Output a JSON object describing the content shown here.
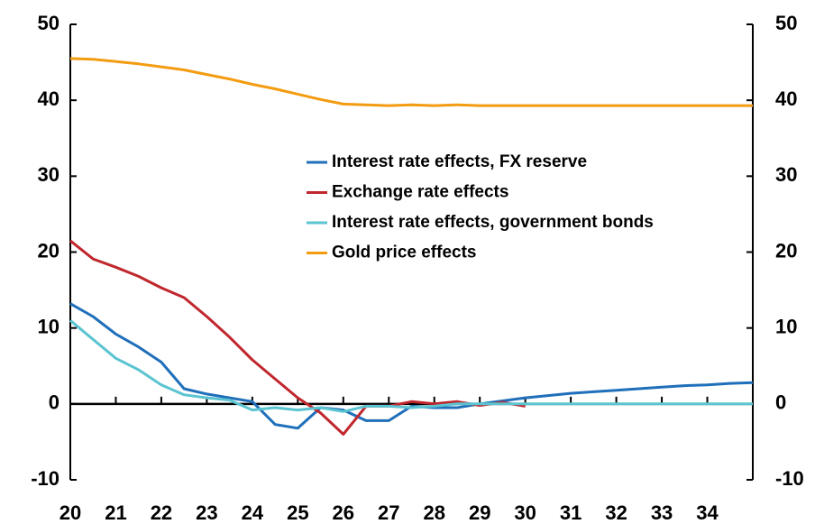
{
  "chart_data": {
    "type": "line",
    "x": [
      20,
      20.5,
      21,
      21.5,
      22,
      22.5,
      23,
      23.5,
      24,
      24.5,
      25,
      25.5,
      26,
      26.5,
      27,
      27.5,
      28,
      28.5,
      29,
      29.5,
      30,
      30.5,
      31,
      31.5,
      32,
      32.5,
      33,
      33.5,
      34,
      34.5,
      35
    ],
    "series": [
      {
        "name": "Interest rate effects, FX reserve",
        "color": "#1f6fba",
        "values": [
          13.2,
          11.5,
          9.2,
          7.5,
          5.5,
          2.0,
          1.3,
          0.8,
          0.3,
          -2.7,
          -3.2,
          -0.5,
          -0.8,
          -2.2,
          -2.2,
          -0.3,
          -0.5,
          -0.5,
          0.0,
          0.4,
          0.8,
          1.1,
          1.4,
          1.6,
          1.8,
          2.0,
          2.2,
          2.4,
          2.5,
          2.7,
          2.8
        ]
      },
      {
        "name": "Exchange rate effects",
        "color": "#c0272d",
        "values": [
          21.5,
          19.1,
          18.0,
          16.8,
          15.3,
          14.0,
          11.5,
          8.8,
          5.8,
          3.3,
          0.8,
          -1.2,
          -4.0,
          -0.3,
          -0.3,
          0.3,
          0.0,
          0.3,
          -0.2,
          0.2,
          -0.3,
          null,
          null,
          null,
          null,
          null,
          null,
          null,
          null,
          null,
          null
        ]
      },
      {
        "name": "Interest rate effects, government bonds",
        "color": "#5bc4d1",
        "values": [
          11.0,
          8.5,
          6.0,
          4.5,
          2.5,
          1.2,
          0.8,
          0.5,
          -0.8,
          -0.5,
          -0.8,
          -0.5,
          -1.0,
          -0.3,
          -0.3,
          -0.5,
          -0.3,
          0.0,
          0.0,
          0.0,
          0.0,
          0.0,
          0.0,
          0.0,
          0.0,
          0.0,
          0.0,
          0.0,
          0.0,
          0.0,
          0.0
        ]
      },
      {
        "name": "Gold price effects",
        "color": "#f39c12",
        "values": [
          45.5,
          45.4,
          45.1,
          44.8,
          44.4,
          44.0,
          43.4,
          42.8,
          42.1,
          41.5,
          40.8,
          40.1,
          39.5,
          39.4,
          39.3,
          39.4,
          39.3,
          39.4,
          39.3,
          39.3,
          39.3,
          39.3,
          39.3,
          39.3,
          39.3,
          39.3,
          39.3,
          39.3,
          39.3,
          39.3,
          39.3
        ]
      }
    ],
    "xlim": [
      20,
      35
    ],
    "xticks": [
      20,
      21,
      22,
      23,
      24,
      25,
      26,
      27,
      28,
      29,
      30,
      31,
      32,
      33,
      34
    ],
    "ylim": [
      -10,
      50
    ],
    "yticks": [
      -10,
      0,
      10,
      20,
      30,
      40,
      50
    ],
    "y2lim": [
      -10,
      50
    ],
    "y2ticks": [
      -10,
      0,
      10,
      20,
      30,
      40,
      50
    ],
    "legend": "center",
    "grid": false
  }
}
